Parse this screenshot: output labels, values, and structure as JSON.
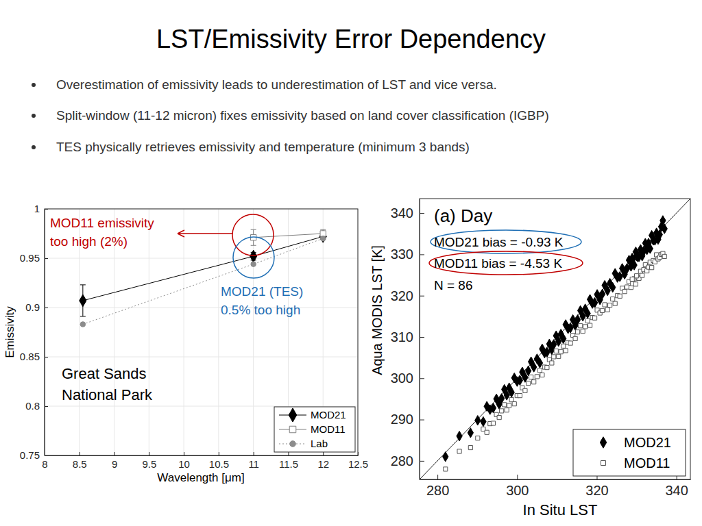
{
  "slide": {
    "title": "LST/Emissivity Error Dependency",
    "bullets": [
      "Overestimation of emissivity leads to underestimation of LST and vice versa.",
      "Split-window (11-12 micron) fixes emissivity based on land cover classification (IGBP)",
      "TES physically retrieves emissivity and temperature (minimum 3 bands)"
    ]
  },
  "chart_data": [
    {
      "type": "line",
      "x_label": "Wavelength [μm]",
      "y_label": "Emissivity",
      "xlim": [
        8,
        12.5
      ],
      "ylim": [
        0.75,
        1
      ],
      "xticks": [
        8,
        8.5,
        9,
        9.5,
        10,
        10.5,
        11,
        11.5,
        12,
        12.5
      ],
      "yticks": [
        0.75,
        0.8,
        0.85,
        0.9,
        0.95,
        1
      ],
      "grid": true,
      "legend": "lower right",
      "series": [
        {
          "name": "MOD21",
          "color": "#000000",
          "marker": "diamond",
          "line_style": "solid",
          "x": [
            8.55,
            11,
            12
          ],
          "values": [
            0.907,
            0.952,
            0.972
          ],
          "errors": [
            0.016,
            0.004,
            0.003
          ]
        },
        {
          "name": "MOD11",
          "color": "#7f7f7f",
          "marker": "open-square",
          "line_style": "solid",
          "x": [
            11,
            12
          ],
          "values": [
            0.971,
            0.975
          ],
          "errors": [
            0.008,
            0.004
          ]
        },
        {
          "name": "Lab",
          "color": "#8c8c8c",
          "marker": "circle",
          "line_style": "dotted",
          "x": [
            8.55,
            11,
            12
          ],
          "values": [
            0.883,
            0.944,
            0.97
          ]
        }
      ],
      "annotations": [
        {
          "lines": [
            "MOD11 emissivity",
            "too high (2%)"
          ],
          "color": "#c00000"
        },
        {
          "lines": [
            "MOD21 (TES)",
            "0.5% too high"
          ],
          "color": "#1f6fb5"
        },
        {
          "lines": [
            "Great Sands",
            "National Park"
          ],
          "color": "#000000"
        }
      ]
    },
    {
      "type": "scatter",
      "title": "(a) Day",
      "x_label": "In Situ LST",
      "y_label": "Aqua MODIS LST [K]",
      "xlim": [
        275.5,
        343.5
      ],
      "ylim": [
        275.5,
        343.5
      ],
      "xticks": [
        280,
        300,
        320,
        340
      ],
      "yticks": [
        280,
        290,
        300,
        310,
        320,
        330,
        340
      ],
      "grid": false,
      "legend": "lower right",
      "x": [
        282.0,
        285.5,
        288.3,
        290.1,
        291.5,
        292.4,
        293.2,
        294.0,
        294.8,
        295.5,
        296.1,
        296.8,
        297.4,
        298.0,
        298.6,
        299.3,
        300.0,
        300.7,
        301.3,
        302.0,
        302.8,
        303.5,
        304.2,
        305.0,
        305.7,
        306.3,
        306.9,
        307.5,
        308.1,
        308.7,
        309.2,
        309.8,
        310.4,
        311.0,
        311.6,
        312.2,
        312.8,
        313.4,
        314.0,
        314.6,
        315.2,
        315.9,
        316.5,
        317.1,
        317.7,
        318.3,
        318.9,
        319.5,
        320.1,
        320.8,
        321.4,
        322.0,
        322.7,
        323.3,
        324.0,
        324.6,
        325.2,
        325.8,
        326.4,
        327.0,
        327.6,
        328.1,
        328.6,
        329.0,
        329.4,
        329.8,
        330.2,
        330.6,
        331.0,
        331.4,
        331.8,
        332.2,
        332.6,
        333.0,
        333.4,
        333.8,
        334.2,
        334.6,
        335.0,
        335.4,
        335.8,
        336.2,
        336.6,
        337.0,
        330.0,
        328.9
      ],
      "series": [
        {
          "name": "MOD21",
          "color": "#000000",
          "marker": "diamond",
          "values": [
            281.0,
            286.0,
            286.8,
            289.8,
            289.5,
            293.2,
            292.4,
            292.8,
            295.0,
            293.7,
            295.1,
            297.3,
            295.9,
            297.7,
            296.6,
            300.1,
            299.2,
            299.5,
            301.5,
            300.2,
            301.8,
            304.0,
            302.7,
            304.7,
            303.7,
            307.1,
            306.1,
            306.3,
            308.3,
            306.9,
            308.2,
            310.3,
            308.9,
            310.7,
            309.6,
            313.0,
            312.0,
            312.2,
            314.2,
            312.8,
            314.2,
            316.4,
            315.0,
            316.8,
            315.7,
            319.1,
            318.1,
            318.3,
            320.3,
            319.0,
            320.4,
            322.5,
            321.2,
            323.0,
            322.0,
            325.4,
            324.4,
            324.6,
            326.6,
            325.2,
            326.6,
            328.6,
            327.1,
            328.7,
            327.4,
            330.6,
            329.4,
            329.4,
            331.2,
            329.6,
            330.8,
            332.7,
            331.1,
            332.7,
            331.4,
            334.6,
            333.4,
            333.4,
            335.2,
            333.6,
            334.8,
            336.7,
            338.2,
            336.2,
            329.7,
            329.1
          ]
        },
        {
          "name": "MOD11",
          "color": "#555555",
          "marker": "open-square",
          "values": [
            278.0,
            282.3,
            283.2,
            285.5,
            287.7,
            286.9,
            289.0,
            289.1,
            291.2,
            290.5,
            292.1,
            293.6,
            292.3,
            293.4,
            294.8,
            293.8,
            295.8,
            295.8,
            297.7,
            297.0,
            298.8,
            300.3,
            299.1,
            300.4,
            301.9,
            300.8,
            302.7,
            302.6,
            304.5,
            303.7,
            305.2,
            306.6,
            305.3,
            306.4,
            307.8,
            306.7,
            308.6,
            308.5,
            310.4,
            309.6,
            311.2,
            312.7,
            311.4,
            312.5,
            313.9,
            312.8,
            314.7,
            314.6,
            316.5,
            315.8,
            316.4,
            317.8,
            316.6,
            317.7,
            319.2,
            318.1,
            320.0,
            319.9,
            321.8,
            321.0,
            322.1,
            323.4,
            322.0,
            322.9,
            324.1,
            322.8,
            324.5,
            324.2,
            325.9,
            324.9,
            326.3,
            327.5,
            326.0,
            326.9,
            328.1,
            326.8,
            328.5,
            328.2,
            329.9,
            328.9,
            329.3,
            330.0,
            330.2,
            329.5,
            324.8,
            324.0
          ]
        }
      ],
      "annotations": [
        {
          "lines": [
            "MOD21 bias = -0.93 K"
          ],
          "color": "#000000"
        },
        {
          "lines": [
            "MOD11 bias = -4.53 K"
          ],
          "color": "#000000"
        },
        {
          "lines": [
            "N = 86"
          ],
          "color": "#000000"
        }
      ]
    }
  ]
}
